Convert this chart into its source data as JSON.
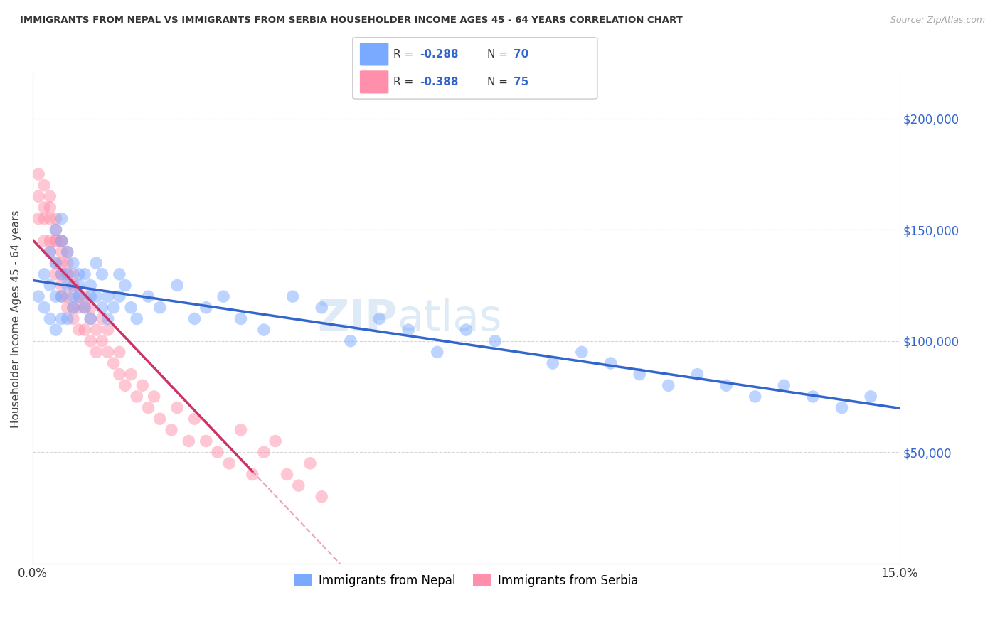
{
  "title": "IMMIGRANTS FROM NEPAL VS IMMIGRANTS FROM SERBIA HOUSEHOLDER INCOME AGES 45 - 64 YEARS CORRELATION CHART",
  "source": "Source: ZipAtlas.com",
  "ylabel": "Householder Income Ages 45 - 64 years",
  "xlim": [
    0.0,
    0.15
  ],
  "ylim": [
    0,
    220000
  ],
  "nepal_R": "-0.288",
  "nepal_N": "70",
  "serbia_R": "-0.388",
  "serbia_N": "75",
  "nepal_color": "#7aaaff",
  "serbia_color": "#ff8fab",
  "nepal_line_color": "#3366cc",
  "serbia_line_color": "#cc3366",
  "watermark_zip": "ZIP",
  "watermark_atlas": "atlas",
  "nepal_label": "Immigrants from Nepal",
  "serbia_label": "Immigrants from Serbia",
  "nepal_scatter_x": [
    0.001,
    0.002,
    0.002,
    0.003,
    0.003,
    0.003,
    0.004,
    0.004,
    0.004,
    0.004,
    0.005,
    0.005,
    0.005,
    0.005,
    0.005,
    0.006,
    0.006,
    0.006,
    0.006,
    0.007,
    0.007,
    0.007,
    0.008,
    0.008,
    0.008,
    0.009,
    0.009,
    0.01,
    0.01,
    0.01,
    0.011,
    0.011,
    0.012,
    0.012,
    0.013,
    0.013,
    0.014,
    0.015,
    0.015,
    0.016,
    0.017,
    0.018,
    0.02,
    0.022,
    0.025,
    0.028,
    0.03,
    0.033,
    0.036,
    0.04,
    0.045,
    0.05,
    0.055,
    0.06,
    0.065,
    0.07,
    0.075,
    0.08,
    0.09,
    0.095,
    0.1,
    0.105,
    0.11,
    0.115,
    0.12,
    0.125,
    0.13,
    0.135,
    0.14,
    0.145
  ],
  "nepal_scatter_y": [
    120000,
    130000,
    115000,
    125000,
    110000,
    140000,
    135000,
    150000,
    120000,
    105000,
    145000,
    130000,
    120000,
    110000,
    155000,
    140000,
    125000,
    110000,
    130000,
    135000,
    120000,
    115000,
    130000,
    120000,
    125000,
    115000,
    130000,
    120000,
    110000,
    125000,
    135000,
    120000,
    115000,
    130000,
    120000,
    110000,
    115000,
    130000,
    120000,
    125000,
    115000,
    110000,
    120000,
    115000,
    125000,
    110000,
    115000,
    120000,
    110000,
    105000,
    120000,
    115000,
    100000,
    110000,
    105000,
    95000,
    105000,
    100000,
    90000,
    95000,
    90000,
    85000,
    80000,
    85000,
    80000,
    75000,
    80000,
    75000,
    70000,
    75000
  ],
  "serbia_scatter_x": [
    0.001,
    0.001,
    0.001,
    0.002,
    0.002,
    0.002,
    0.002,
    0.003,
    0.003,
    0.003,
    0.003,
    0.003,
    0.004,
    0.004,
    0.004,
    0.004,
    0.004,
    0.004,
    0.005,
    0.005,
    0.005,
    0.005,
    0.005,
    0.005,
    0.005,
    0.006,
    0.006,
    0.006,
    0.006,
    0.006,
    0.007,
    0.007,
    0.007,
    0.007,
    0.007,
    0.008,
    0.008,
    0.008,
    0.009,
    0.009,
    0.009,
    0.01,
    0.01,
    0.01,
    0.011,
    0.011,
    0.012,
    0.012,
    0.013,
    0.013,
    0.014,
    0.015,
    0.015,
    0.016,
    0.017,
    0.018,
    0.019,
    0.02,
    0.021,
    0.022,
    0.024,
    0.025,
    0.027,
    0.028,
    0.03,
    0.032,
    0.034,
    0.036,
    0.038,
    0.04,
    0.042,
    0.044,
    0.046,
    0.048,
    0.05
  ],
  "serbia_scatter_y": [
    175000,
    165000,
    155000,
    170000,
    155000,
    160000,
    145000,
    165000,
    155000,
    145000,
    160000,
    140000,
    155000,
    145000,
    150000,
    135000,
    145000,
    130000,
    145000,
    135000,
    145000,
    130000,
    120000,
    140000,
    125000,
    140000,
    130000,
    120000,
    135000,
    115000,
    125000,
    130000,
    115000,
    125000,
    110000,
    120000,
    115000,
    105000,
    115000,
    105000,
    120000,
    110000,
    100000,
    115000,
    105000,
    95000,
    100000,
    110000,
    95000,
    105000,
    90000,
    85000,
    95000,
    80000,
    85000,
    75000,
    80000,
    70000,
    75000,
    65000,
    60000,
    70000,
    55000,
    65000,
    55000,
    50000,
    45000,
    60000,
    40000,
    50000,
    55000,
    40000,
    35000,
    45000,
    30000
  ]
}
